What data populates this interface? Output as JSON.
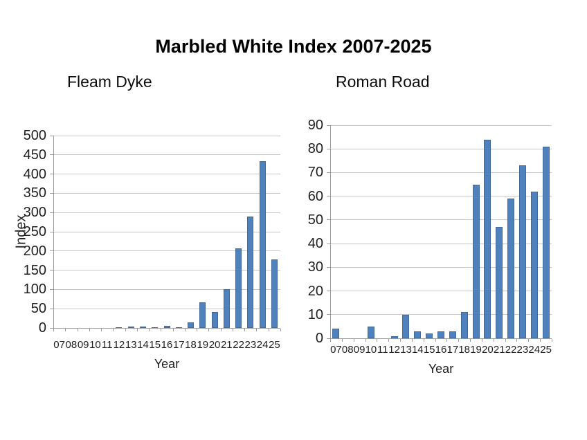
{
  "slide": {
    "title": "Marbled White Index 2007-2025"
  },
  "colors": {
    "bar_fill": "#4f81bd",
    "bar_border": "#41699c",
    "gridline": "#c6c6c6",
    "axis": "#9c9c9c",
    "text": "#1f1f1f"
  },
  "chart_data": [
    {
      "type": "bar",
      "title": "Fleam Dyke",
      "xlabel": "Year",
      "ylabel": "Index",
      "categories": [
        "07",
        "08",
        "09",
        "10",
        "11",
        "12",
        "13",
        "14",
        "15",
        "16",
        "17",
        "18",
        "19",
        "20",
        "21",
        "22",
        "23",
        "24",
        "25"
      ],
      "values": [
        0,
        0,
        0,
        0,
        0,
        2,
        4,
        4,
        2,
        5,
        2,
        15,
        67,
        41,
        100,
        207,
        290,
        433,
        178
      ],
      "ylim": [
        0,
        500
      ],
      "yticks": [
        0,
        50,
        100,
        150,
        200,
        250,
        300,
        350,
        400,
        450,
        500
      ],
      "grid": true,
      "legend": "none"
    },
    {
      "type": "bar",
      "title": "Roman Road",
      "xlabel": "Year",
      "ylabel": "",
      "categories": [
        "07",
        "08",
        "09",
        "10",
        "11",
        "12",
        "13",
        "14",
        "15",
        "16",
        "17",
        "18",
        "19",
        "20",
        "21",
        "22",
        "23",
        "24",
        "25"
      ],
      "values": [
        4,
        0,
        0,
        5,
        0,
        1,
        10,
        3,
        2,
        3,
        3,
        11,
        65,
        84,
        47,
        59,
        73,
        62,
        81
      ],
      "ylim": [
        0,
        90
      ],
      "yticks": [
        0,
        10,
        20,
        30,
        40,
        50,
        60,
        70,
        80,
        90
      ],
      "grid": true,
      "legend": "none"
    }
  ]
}
